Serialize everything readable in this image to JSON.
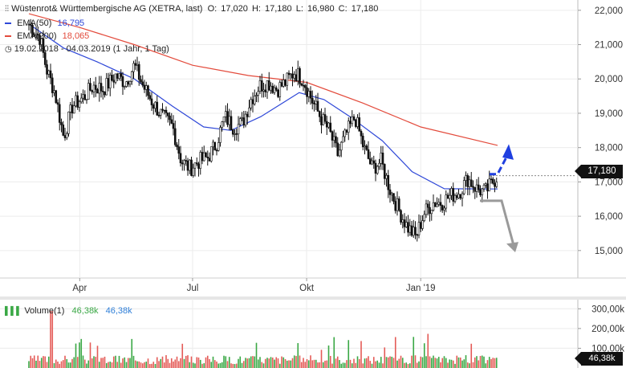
{
  "header": {
    "icon": "candlestick-icon",
    "title": "Wüstenrot& Württembergische AG (XETRA, last)",
    "ohlc": "O: 17,020  H: 17,180  L: 16,980  C: 17,180",
    "ema50_label": "EMA(50)",
    "ema50_value": "16,795",
    "ema200_label": "EMA(200)",
    "ema200_value": "18,065",
    "range_icon": "clock-icon",
    "range": "19.02.2018 - 04.03.2019 (1 Jahr, 1 Tag)"
  },
  "colors": {
    "ema50": "#2f48d8",
    "ema200": "#e34b3c",
    "candle": "#111111",
    "vol_up": "#3aa845",
    "vol_down": "#e45b57",
    "arrow_up": "#1f3fe0",
    "arrow_down": "#9a9a9a"
  },
  "chart_data": {
    "type": "candlestick",
    "y_ticks": [
      "22,000",
      "21,000",
      "20,000",
      "19,000",
      "18,000",
      "17,000",
      "16,000",
      "15,000"
    ],
    "y_tick_values": [
      22,
      21,
      20,
      19,
      18,
      17,
      16,
      15
    ],
    "ylim": [
      14.2,
      22.3
    ],
    "x_ticks": [
      "Apr",
      "Jul",
      "Okt",
      "Jan '19"
    ],
    "x_tick_dates": [
      "2018-04-01",
      "2018-07-01",
      "2018-10-01",
      "2019-01-01"
    ],
    "x_range": [
      "2018-02-19",
      "2019-03-04"
    ],
    "last_price": "17,180",
    "close_series": [
      {
        "date": "2018-02-19",
        "value": 21.6
      },
      {
        "date": "2018-02-28",
        "value": 21.2
      },
      {
        "date": "2018-03-05",
        "value": 20.3
      },
      {
        "date": "2018-03-12",
        "value": 19.6
      },
      {
        "date": "2018-03-19",
        "value": 18.3
      },
      {
        "date": "2018-03-26",
        "value": 19.2
      },
      {
        "date": "2018-04-05",
        "value": 19.5
      },
      {
        "date": "2018-04-12",
        "value": 19.8
      },
      {
        "date": "2018-04-20",
        "value": 19.7
      },
      {
        "date": "2018-04-30",
        "value": 20.1
      },
      {
        "date": "2018-05-08",
        "value": 19.9
      },
      {
        "date": "2018-05-15",
        "value": 20.4
      },
      {
        "date": "2018-05-22",
        "value": 19.8
      },
      {
        "date": "2018-05-30",
        "value": 19.3
      },
      {
        "date": "2018-06-07",
        "value": 18.9
      },
      {
        "date": "2018-06-15",
        "value": 18.6
      },
      {
        "date": "2018-06-22",
        "value": 17.6
      },
      {
        "date": "2018-06-29",
        "value": 17.4
      },
      {
        "date": "2018-07-06",
        "value": 17.6
      },
      {
        "date": "2018-07-13",
        "value": 17.7
      },
      {
        "date": "2018-07-20",
        "value": 18.1
      },
      {
        "date": "2018-07-27",
        "value": 18.9
      },
      {
        "date": "2018-08-03",
        "value": 18.6
      },
      {
        "date": "2018-08-10",
        "value": 18.7
      },
      {
        "date": "2018-08-17",
        "value": 19.4
      },
      {
        "date": "2018-08-24",
        "value": 19.8
      },
      {
        "date": "2018-08-31",
        "value": 19.9
      },
      {
        "date": "2018-09-07",
        "value": 19.7
      },
      {
        "date": "2018-09-14",
        "value": 19.9
      },
      {
        "date": "2018-09-21",
        "value": 20.2
      },
      {
        "date": "2018-09-28",
        "value": 20.0
      },
      {
        "date": "2018-10-05",
        "value": 19.4
      },
      {
        "date": "2018-10-12",
        "value": 18.9
      },
      {
        "date": "2018-10-19",
        "value": 18.5
      },
      {
        "date": "2018-10-26",
        "value": 17.8
      },
      {
        "date": "2018-11-02",
        "value": 18.4
      },
      {
        "date": "2018-11-09",
        "value": 18.9
      },
      {
        "date": "2018-11-16",
        "value": 18.0
      },
      {
        "date": "2018-11-23",
        "value": 17.4
      },
      {
        "date": "2018-11-30",
        "value": 17.6
      },
      {
        "date": "2018-12-07",
        "value": 16.8
      },
      {
        "date": "2018-12-14",
        "value": 16.2
      },
      {
        "date": "2018-12-21",
        "value": 15.7
      },
      {
        "date": "2018-12-28",
        "value": 15.4
      },
      {
        "date": "2019-01-04",
        "value": 16.1
      },
      {
        "date": "2019-01-11",
        "value": 16.4
      },
      {
        "date": "2019-01-18",
        "value": 16.4
      },
      {
        "date": "2019-01-25",
        "value": 16.6
      },
      {
        "date": "2019-02-01",
        "value": 16.7
      },
      {
        "date": "2019-02-08",
        "value": 17.1
      },
      {
        "date": "2019-02-15",
        "value": 16.8
      },
      {
        "date": "2019-02-22",
        "value": 16.7
      },
      {
        "date": "2019-03-04",
        "value": 17.18
      }
    ],
    "ema50_series": [
      {
        "date": "2018-02-19",
        "value": 21.6
      },
      {
        "date": "2018-03-19",
        "value": 20.9
      },
      {
        "date": "2018-04-15",
        "value": 20.5
      },
      {
        "date": "2018-05-15",
        "value": 20.0
      },
      {
        "date": "2018-06-15",
        "value": 19.2
      },
      {
        "date": "2018-07-10",
        "value": 18.6
      },
      {
        "date": "2018-08-01",
        "value": 18.5
      },
      {
        "date": "2018-08-25",
        "value": 18.9
      },
      {
        "date": "2018-09-25",
        "value": 19.6
      },
      {
        "date": "2018-10-15",
        "value": 19.4
      },
      {
        "date": "2018-11-05",
        "value": 18.9
      },
      {
        "date": "2018-12-01",
        "value": 18.2
      },
      {
        "date": "2018-12-25",
        "value": 17.3
      },
      {
        "date": "2019-01-20",
        "value": 16.8
      },
      {
        "date": "2019-03-04",
        "value": 16.795
      }
    ],
    "ema200_series": [
      {
        "date": "2018-02-19",
        "value": 21.9
      },
      {
        "date": "2018-04-01",
        "value": 21.5
      },
      {
        "date": "2018-05-15",
        "value": 21.0
      },
      {
        "date": "2018-07-01",
        "value": 20.4
      },
      {
        "date": "2018-08-15",
        "value": 20.1
      },
      {
        "date": "2018-10-01",
        "value": 19.9
      },
      {
        "date": "2018-11-15",
        "value": 19.3
      },
      {
        "date": "2019-01-01",
        "value": 18.6
      },
      {
        "date": "2019-03-04",
        "value": 18.065
      }
    ],
    "volume": {
      "label": "Volume(1)",
      "value_green": "46,38k",
      "value_blue": "46,38k",
      "last": "46,38k",
      "y_ticks": [
        "300,00k",
        "200,00k",
        "100,00k"
      ],
      "y_tick_values": [
        300,
        200,
        100
      ],
      "ylim": [
        0,
        350
      ]
    }
  }
}
